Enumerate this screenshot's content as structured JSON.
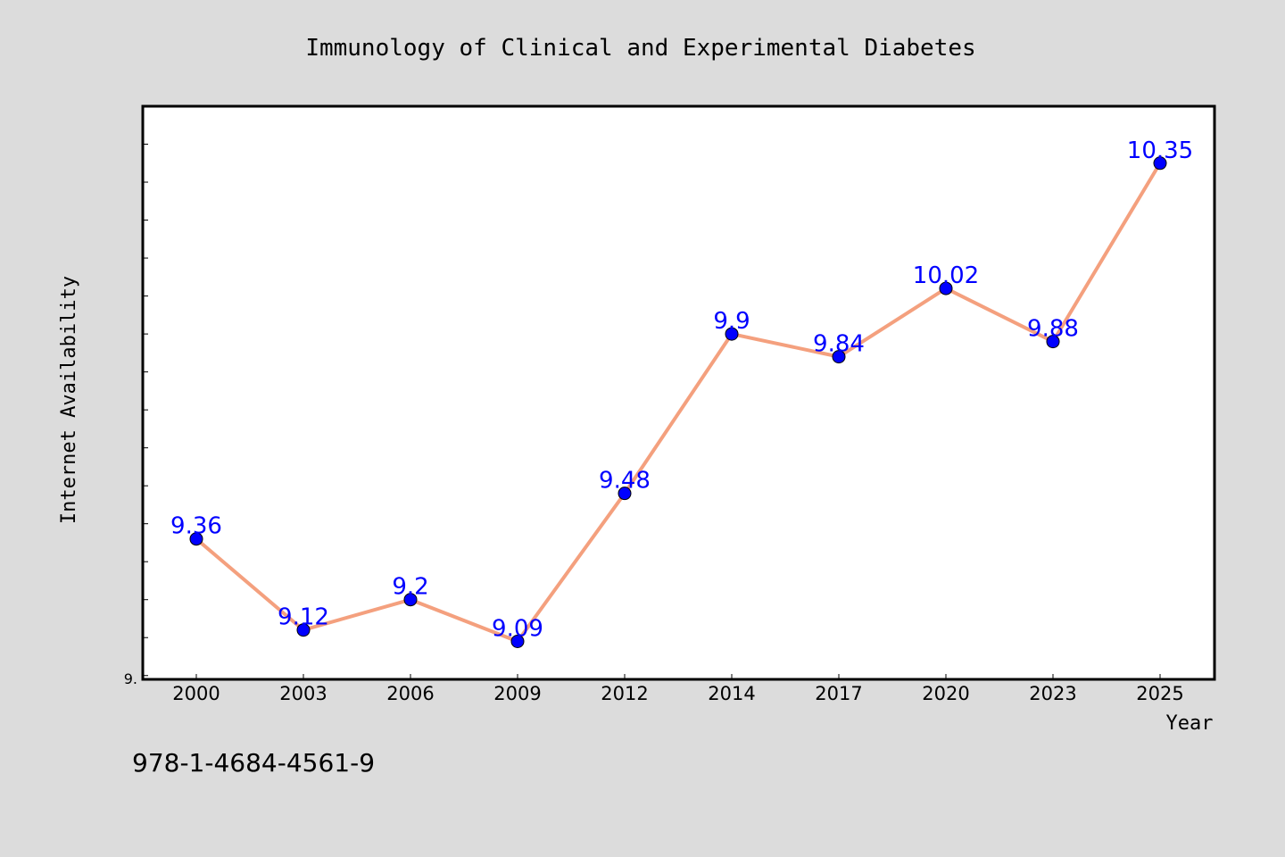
{
  "chart_data": {
    "type": "line",
    "title": "Immunology of Clinical and Experimental Diabetes",
    "xlabel": "Year",
    "ylabel": "Internet Availability",
    "categories": [
      "2000",
      "2003",
      "2006",
      "2009",
      "2012",
      "2014",
      "2017",
      "2020",
      "2023",
      "2025"
    ],
    "series": [
      {
        "values": [
          9.36,
          9.12,
          9.2,
          9.09,
          9.48,
          9.9,
          9.84,
          10.02,
          9.88,
          10.35
        ],
        "data_labels": [
          "9.36",
          "9.12",
          "9.2",
          "9.09",
          "9.48",
          "9.9",
          "9.84",
          "10.02",
          "9.88",
          "10.35"
        ],
        "line_color": "#f4a07e",
        "marker_color": "#0000ff"
      }
    ],
    "ylim": [
      8.99,
      10.5
    ],
    "y_tick_labels": [
      "9."
    ],
    "y_minor_step": 0.1,
    "grid": false,
    "legend": "none",
    "colors": {
      "background": "#dcdcdc",
      "plot_area": "#ffffff",
      "data_label": "#0000ff",
      "text": "#000000"
    }
  },
  "footer_text": "978-1-4684-4561-9"
}
